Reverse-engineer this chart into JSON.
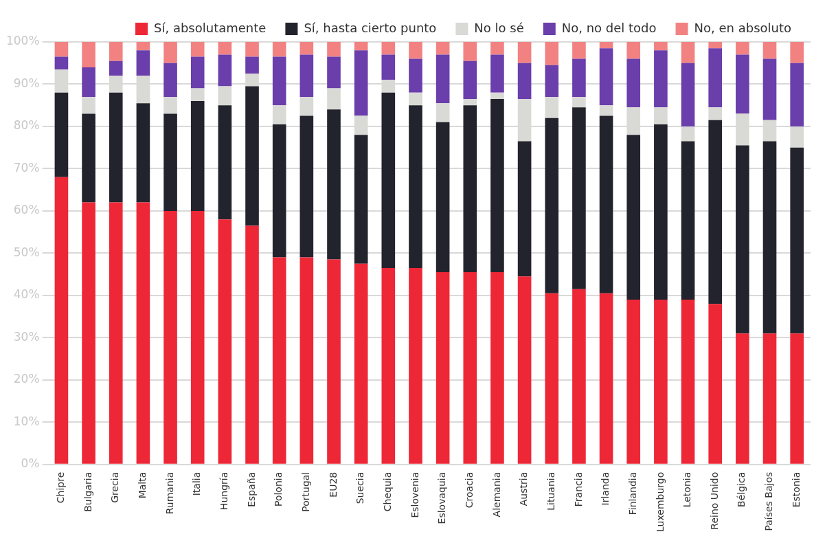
{
  "chart_data": {
    "type": "bar",
    "stacked": true,
    "legend": "top right",
    "grid": "y",
    "categories": [
      "Chipre",
      "Bulgaria",
      "Grecia",
      "Malta",
      "Rumania",
      "Italia",
      "Hungría",
      "España",
      "Polonia",
      "Portugal",
      "EU28",
      "Suecia",
      "Chequia",
      "Eslovenia",
      "Eslovaquia",
      "Croacia",
      "Alemania",
      "Austria",
      "Lituania",
      "Francia",
      "Irlanda",
      "Finlandia",
      "Luxemburgo",
      "Letonia",
      "Reino Unido",
      "Bélgica",
      "Países Bajos",
      "Estonia"
    ],
    "ylim": [
      0,
      100
    ],
    "yticks": [
      {
        "value": 0,
        "label": "0%"
      },
      {
        "value": 10,
        "label": "10%"
      },
      {
        "value": 20,
        "label": "20%"
      },
      {
        "value": 30,
        "label": "30%"
      },
      {
        "value": 40,
        "label": "40%"
      },
      {
        "value": 50,
        "label": "50%"
      },
      {
        "value": 60,
        "label": "60%"
      },
      {
        "value": 70,
        "label": "70%"
      },
      {
        "value": 80,
        "label": "80%"
      },
      {
        "value": 90,
        "label": "90%"
      },
      {
        "value": 100,
        "label": "100%"
      }
    ],
    "series": [
      {
        "name": "Sí, absolutamente",
        "color": "#ee2737",
        "values": [
          68,
          62,
          62,
          62,
          60,
          60,
          58,
          56.5,
          49,
          49,
          48.5,
          47.5,
          46.5,
          46.5,
          45.5,
          45.5,
          45.5,
          44.5,
          40.5,
          41.5,
          40.5,
          39,
          39,
          39,
          38,
          31,
          31,
          31
        ]
      },
      {
        "name": "Sí, hasta cierto punto",
        "color": "#23232d",
        "values": [
          20,
          21,
          26,
          23.5,
          23,
          26,
          27,
          33,
          31.5,
          33.5,
          35.5,
          30.5,
          41.5,
          38.5,
          35.5,
          39.5,
          41,
          32,
          41.5,
          43,
          42,
          39,
          41.5,
          37.5,
          43.5,
          44.5,
          45.5,
          44
        ]
      },
      {
        "name": "No lo sé",
        "color": "#d9d9d6",
        "values": [
          5.5,
          4,
          4,
          6.5,
          4,
          3,
          4.5,
          3,
          4.5,
          4.5,
          5,
          4.5,
          3,
          3,
          4.5,
          1.5,
          1.5,
          10,
          5,
          2.5,
          2.5,
          6.5,
          4,
          3.5,
          3,
          7.5,
          5,
          5
        ]
      },
      {
        "name": "No, no del todo",
        "color": "#6a3eab",
        "values": [
          3,
          7,
          3.5,
          6,
          8,
          7.5,
          7.5,
          4,
          11.5,
          10,
          7.5,
          15.5,
          6,
          8,
          11.5,
          9,
          9,
          8.5,
          7.5,
          9,
          13.5,
          11.5,
          13.5,
          15,
          14,
          14,
          14.5,
          15
        ]
      },
      {
        "name": "No, en absoluto",
        "color": "#f28282",
        "values": [
          3.5,
          6,
          4.5,
          2,
          5,
          3.5,
          3,
          3.5,
          3.5,
          3,
          3.5,
          2,
          3,
          4,
          3,
          4.5,
          3,
          5,
          5.5,
          4,
          1.5,
          4,
          2,
          5,
          1.5,
          3,
          4,
          5
        ]
      }
    ]
  }
}
